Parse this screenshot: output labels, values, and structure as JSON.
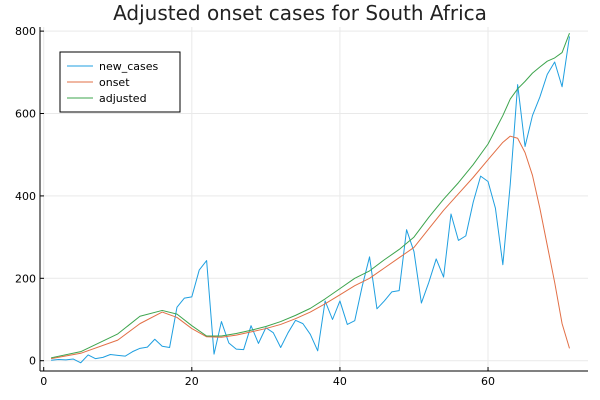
{
  "chart_data": {
    "type": "line",
    "title": "Adjusted onset cases for South Africa",
    "xlabel": "",
    "ylabel": "",
    "xlim": [
      -0.5,
      73.5
    ],
    "ylim": [
      -25,
      810
    ],
    "xticks": [
      0,
      20,
      40,
      60
    ],
    "yticks": [
      0,
      200,
      400,
      600,
      800
    ],
    "grid": true,
    "legend_position": "top-left",
    "series": [
      {
        "name": "new_cases",
        "color": "#1f9fe0",
        "x": [
          1,
          2,
          3,
          4,
          5,
          6,
          7,
          8,
          9,
          10,
          11,
          12,
          13,
          14,
          15,
          16,
          17,
          18,
          19,
          20,
          21,
          22,
          23,
          24,
          25,
          26,
          27,
          28,
          29,
          30,
          31,
          32,
          33,
          34,
          35,
          36,
          37,
          38,
          39,
          40,
          41,
          42,
          43,
          44,
          45,
          46,
          47,
          48,
          49,
          50,
          51,
          52,
          53,
          54,
          55,
          56,
          57,
          58,
          59,
          60,
          61,
          62,
          63,
          64,
          65,
          66,
          67,
          68,
          69,
          70,
          71
        ],
        "values": [
          1,
          3,
          2,
          4,
          -5,
          14,
          5,
          8,
          15,
          13,
          11,
          22,
          30,
          33,
          52,
          35,
          32,
          130,
          152,
          155,
          220,
          243,
          16,
          95,
          43,
          28,
          27,
          85,
          42,
          80,
          68,
          32,
          68,
          98,
          90,
          64,
          24,
          145,
          100,
          145,
          88,
          97,
          180,
          252,
          126,
          145,
          167,
          170,
          318,
          265,
          140,
          190,
          247,
          203,
          356,
          292,
          303,
          385,
          448,
          435,
          370,
          233,
          428,
          670,
          520,
          595,
          640,
          695,
          725,
          665,
          787
        ]
      },
      {
        "name": "onset",
        "color": "#e26f46",
        "x": [
          1,
          5,
          10,
          13,
          16,
          18,
          20,
          22,
          24,
          26,
          28,
          30,
          32,
          34,
          36,
          38,
          40,
          42,
          44,
          46,
          48,
          50,
          52,
          54,
          56,
          58,
          60,
          62,
          63,
          64,
          65,
          66,
          67,
          68,
          69,
          70,
          71
        ],
        "values": [
          5,
          18,
          50,
          90,
          118,
          105,
          78,
          58,
          57,
          62,
          70,
          78,
          88,
          102,
          118,
          138,
          160,
          182,
          200,
          225,
          250,
          275,
          320,
          365,
          405,
          445,
          488,
          530,
          545,
          540,
          505,
          450,
          370,
          280,
          190,
          90,
          30
        ]
      },
      {
        "name": "adjusted",
        "color": "#3da44d",
        "x": [
          1,
          5,
          10,
          13,
          16,
          18,
          20,
          22,
          24,
          26,
          28,
          30,
          32,
          34,
          36,
          38,
          40,
          42,
          44,
          46,
          48,
          50,
          52,
          54,
          56,
          58,
          60,
          62,
          63,
          64,
          65,
          66,
          67,
          68,
          69,
          70,
          71
        ],
        "values": [
          7,
          22,
          65,
          108,
          122,
          113,
          85,
          60,
          60,
          66,
          74,
          83,
          95,
          110,
          127,
          150,
          175,
          200,
          218,
          245,
          270,
          300,
          348,
          392,
          432,
          476,
          526,
          595,
          635,
          660,
          678,
          698,
          713,
          727,
          735,
          748,
          795
        ]
      }
    ]
  }
}
